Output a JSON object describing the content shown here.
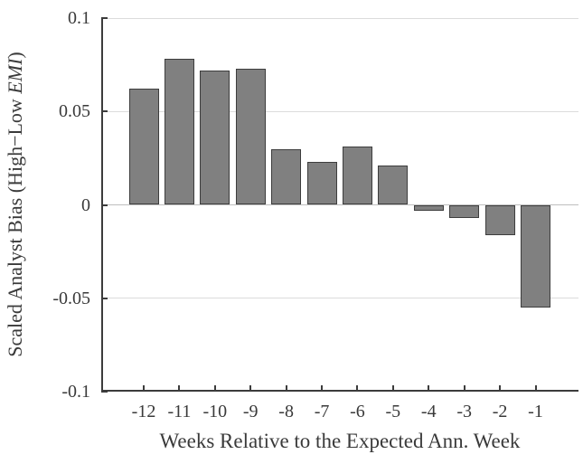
{
  "chart_data": {
    "type": "bar",
    "categories": [
      "-12",
      "-11",
      "-10",
      "-9",
      "-8",
      "-7",
      "-6",
      "-5",
      "-4",
      "-3",
      "-2",
      "-1"
    ],
    "values": [
      0.062,
      0.078,
      0.072,
      0.073,
      0.03,
      0.023,
      0.031,
      0.021,
      -0.003,
      -0.007,
      -0.016,
      -0.055
    ],
    "title": "",
    "xlabel": "Weeks Relative to the Expected Ann. Week",
    "ylabel": "Scaled Analyst Bias (High−Low EMI)",
    "ylabel_parts": {
      "prefix": "Scaled Analyst Bias (High−Low ",
      "italic": "EMI",
      "suffix": ")"
    },
    "ylim": [
      -0.1,
      0.1
    ],
    "yticks": [
      0.1,
      0.05,
      0,
      -0.05,
      -0.1
    ],
    "ytick_labels": [
      "0.1",
      "0.05",
      "0",
      "-0.05",
      "-0.1"
    ],
    "grid": true,
    "legend_position": "none",
    "colors": {
      "bar_fill": "#808080",
      "bar_edge": "#3d3d3d",
      "grid_line": "#dcdcdc",
      "zero_line": "#bfbfbf",
      "axis": "#3c3c3c",
      "text": "#3a3a3a"
    }
  }
}
